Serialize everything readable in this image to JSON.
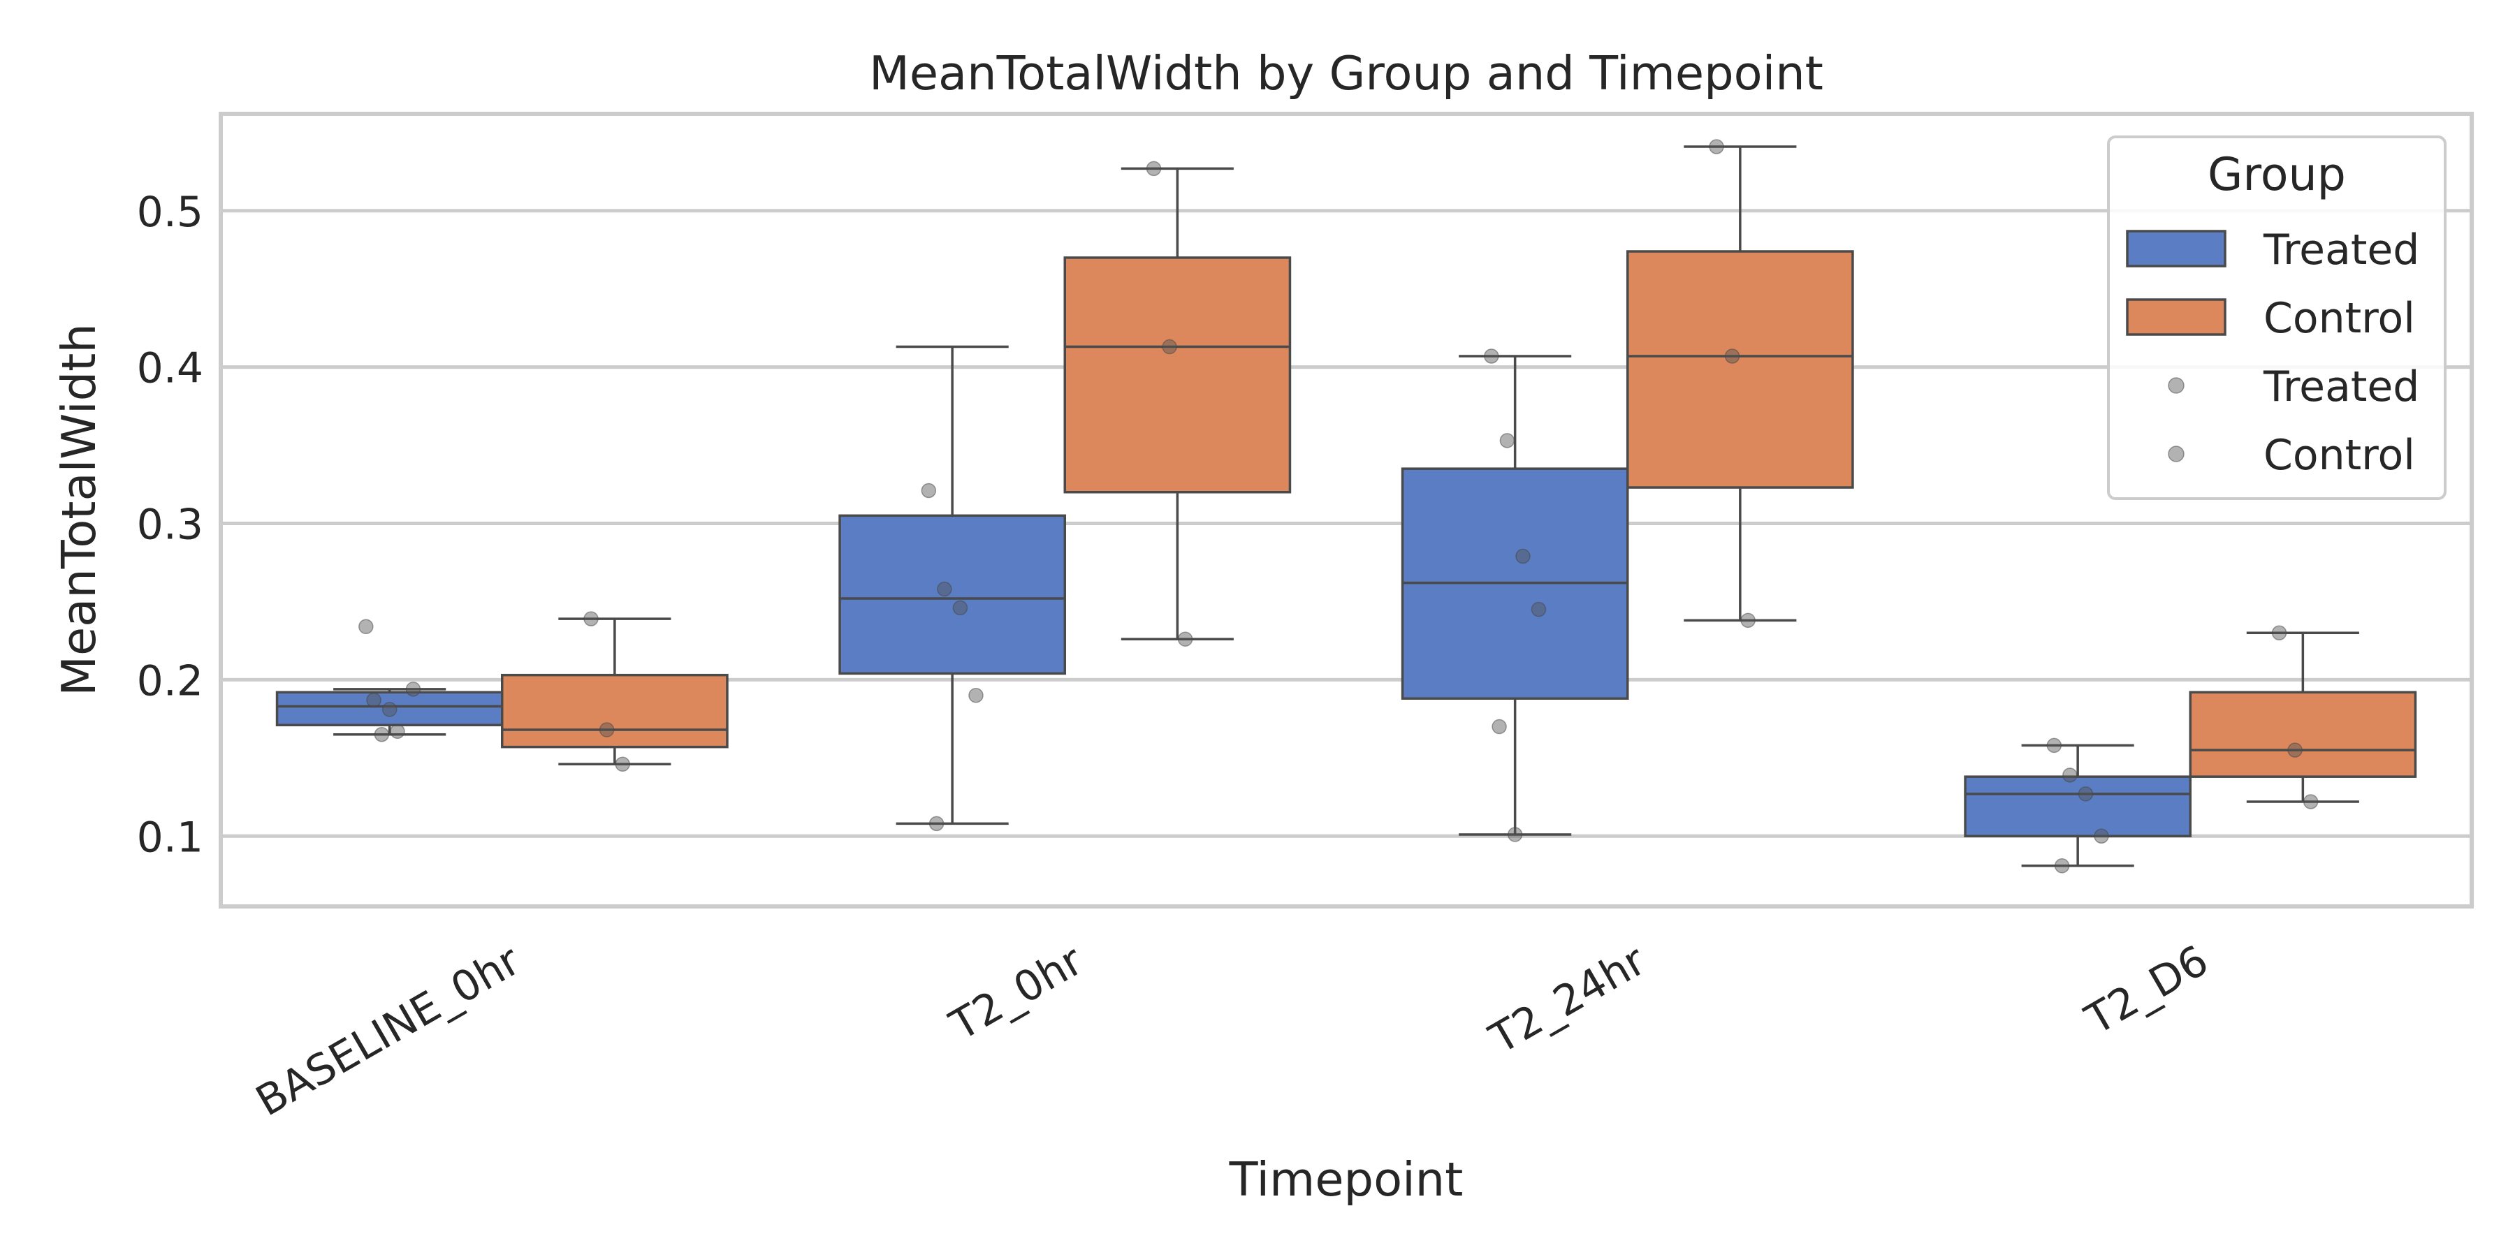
{
  "chart_data": {
    "type": "box",
    "title": "MeanTotalWidth by Group and Timepoint",
    "xlabel": "Timepoint",
    "ylabel": "MeanTotalWidth",
    "ylim": [
      0.055,
      0.562
    ],
    "yticks": [
      "0.1",
      "0.2",
      "0.3",
      "0.4",
      "0.5"
    ],
    "categories": [
      "BASELINE_0hr",
      "T2_0hr",
      "T2_24hr",
      "T2_D6"
    ],
    "grid": "horizontal",
    "legend": {
      "title": "Group",
      "placement": "top-right",
      "entries": [
        {
          "label": "Treated",
          "kind": "box",
          "color": "#5a7dc4"
        },
        {
          "label": "Control",
          "kind": "box",
          "color": "#dc885c"
        },
        {
          "label": "Treated",
          "kind": "point",
          "color": "#8c8c8c"
        },
        {
          "label": "Control",
          "kind": "point",
          "color": "#8c8c8c"
        }
      ]
    },
    "series": [
      {
        "name": "Treated",
        "color": "#5a7dc4",
        "boxes": [
          {
            "category": "BASELINE_0hr",
            "whislo": 0.165,
            "q1": 0.171,
            "med": 0.183,
            "q3": 0.192,
            "whishi": 0.194
          },
          {
            "category": "T2_0hr",
            "whislo": 0.108,
            "q1": 0.204,
            "med": 0.252,
            "q3": 0.305,
            "whishi": 0.413
          },
          {
            "category": "T2_24hr",
            "whislo": 0.101,
            "q1": 0.188,
            "med": 0.262,
            "q3": 0.335,
            "whishi": 0.407
          },
          {
            "category": "T2_D6",
            "whislo": 0.081,
            "q1": 0.1,
            "med": 0.127,
            "q3": 0.138,
            "whishi": 0.158
          }
        ],
        "points": [
          {
            "category": "BASELINE_0hr",
            "values": [
              0.234,
              0.165,
              0.167,
              0.194,
              0.187,
              0.181
            ]
          },
          {
            "category": "T2_0hr",
            "values": [
              0.321,
              0.258,
              0.246,
              0.19,
              0.108
            ]
          },
          {
            "category": "T2_24hr",
            "values": [
              0.407,
              0.353,
              0.279,
              0.245,
              0.17,
              0.101
            ]
          },
          {
            "category": "T2_D6",
            "values": [
              0.158,
              0.139,
              0.127,
              0.1,
              0.081
            ]
          }
        ]
      },
      {
        "name": "Control",
        "color": "#dc885c",
        "boxes": [
          {
            "category": "BASELINE_0hr",
            "whislo": 0.146,
            "q1": 0.157,
            "med": 0.168,
            "q3": 0.203,
            "whishi": 0.239
          },
          {
            "category": "T2_0hr",
            "whislo": 0.226,
            "q1": 0.32,
            "med": 0.413,
            "q3": 0.47,
            "whishi": 0.527
          },
          {
            "category": "T2_24hr",
            "whislo": 0.238,
            "q1": 0.323,
            "med": 0.407,
            "q3": 0.474,
            "whishi": 0.541
          },
          {
            "category": "T2_D6",
            "whislo": 0.122,
            "q1": 0.138,
            "med": 0.155,
            "q3": 0.192,
            "whishi": 0.23
          }
        ],
        "points": [
          {
            "category": "BASELINE_0hr",
            "values": [
              0.239,
              0.168,
              0.146
            ]
          },
          {
            "category": "T2_0hr",
            "values": [
              0.527,
              0.413,
              0.226
            ]
          },
          {
            "category": "T2_24hr",
            "values": [
              0.541,
              0.407,
              0.238
            ]
          },
          {
            "category": "T2_D6",
            "values": [
              0.23,
              0.155,
              0.122
            ]
          }
        ]
      }
    ]
  }
}
